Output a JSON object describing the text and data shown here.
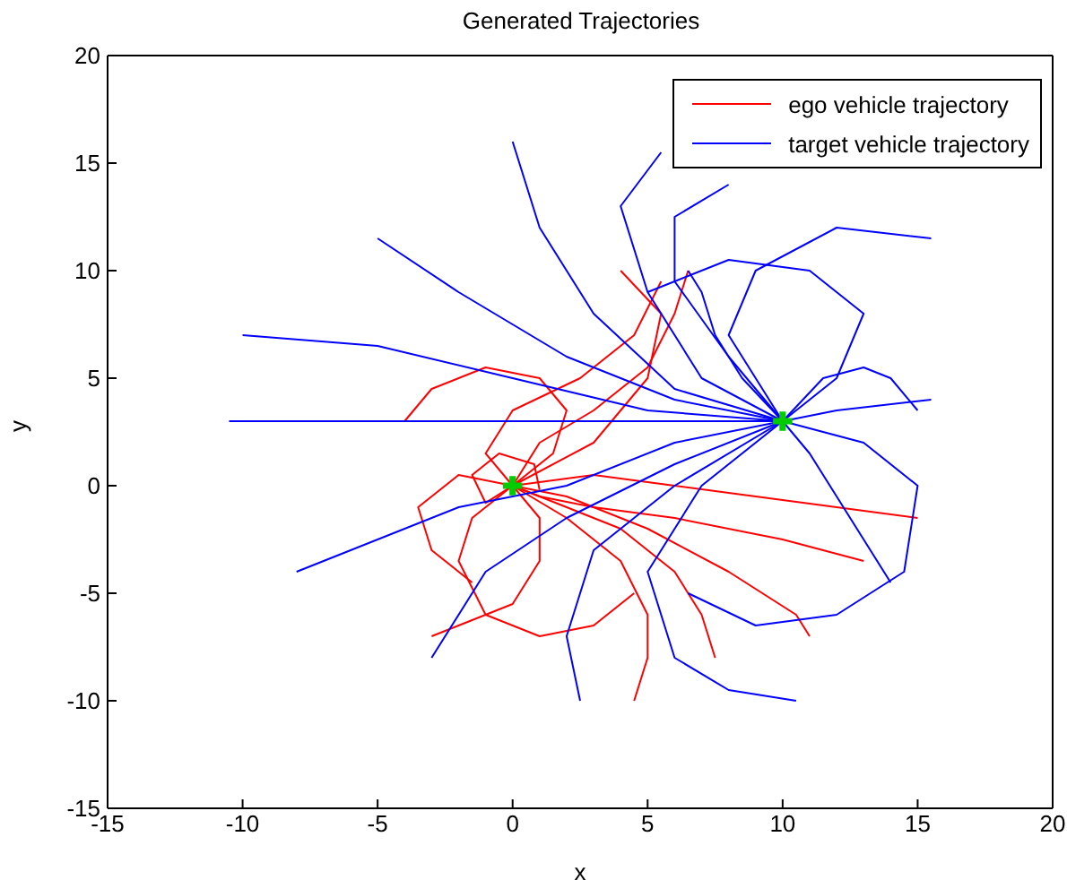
{
  "chart_data": {
    "type": "line",
    "title": "Generated Trajectories",
    "xlabel": "x",
    "ylabel": "y",
    "xlim": [
      -15,
      20
    ],
    "xticks": [
      -15,
      -10,
      -5,
      0,
      5,
      10,
      15,
      20
    ],
    "ylim": [
      -15,
      20
    ],
    "yticks": [
      -15,
      -10,
      -5,
      0,
      5,
      10,
      15,
      20
    ],
    "legend": "top right",
    "series": [
      {
        "name": "ego vehicle trajectory",
        "color": "#ff0000",
        "x": [
          0,
          1.5,
          2,
          1,
          -1,
          -3,
          -4
        ],
        "values": [
          0,
          1.5,
          3.5,
          5,
          5.5,
          4.5,
          3
        ]
      },
      {
        "color": "#ff0000",
        "x": [
          0,
          -1.5,
          -2,
          -1,
          1,
          3,
          4.5
        ],
        "values": [
          0,
          -1.5,
          -3.5,
          -6,
          -7,
          -6.5,
          -5
        ]
      },
      {
        "color": "#ff0000",
        "x": [
          0,
          2,
          4,
          6,
          7,
          7.5
        ],
        "values": [
          0,
          -1,
          -2,
          -4,
          -6,
          -8
        ]
      },
      {
        "color": "#ff0000",
        "x": [
          0,
          2,
          5,
          8,
          10.5,
          11
        ],
        "values": [
          0,
          -0.5,
          -2,
          -4,
          -6,
          -7
        ]
      },
      {
        "color": "#ff0000",
        "x": [
          0,
          3,
          6,
          9,
          12,
          15
        ],
        "values": [
          0,
          0.5,
          0,
          -0.5,
          -1,
          -1.5
        ]
      },
      {
        "color": "#ff0000",
        "x": [
          0,
          -1,
          0,
          2.5,
          4.5,
          5.5
        ],
        "values": [
          0,
          1.5,
          3.5,
          5,
          7,
          9.5
        ]
      },
      {
        "color": "#ff0000",
        "x": [
          0,
          1,
          3,
          5,
          6,
          6.5
        ],
        "values": [
          0,
          2,
          3.5,
          5.5,
          8,
          10
        ]
      },
      {
        "color": "#ff0000",
        "x": [
          0,
          -2,
          -3.5,
          -3,
          -1.5
        ],
        "values": [
          0,
          0.5,
          -1,
          -3,
          -4.5
        ]
      },
      {
        "color": "#ff0000",
        "x": [
          0,
          1,
          1,
          0,
          -2,
          -3
        ],
        "values": [
          0,
          -1.5,
          -3.5,
          -5.5,
          -6.5,
          -7
        ]
      },
      {
        "color": "#ff0000",
        "x": [
          0,
          2,
          4,
          5,
          5,
          4.5
        ],
        "values": [
          0,
          -1.5,
          -3.5,
          -6,
          -8,
          -10
        ]
      },
      {
        "color": "#ff0000",
        "x": [
          0,
          1,
          3,
          6,
          10,
          13
        ],
        "values": [
          0,
          -0.5,
          -1,
          -1.5,
          -2.5,
          -3.5
        ]
      },
      {
        "color": "#ff0000",
        "x": [
          0,
          -1,
          -1.5,
          -0.5,
          0.8,
          1
        ],
        "values": [
          0,
          -0.8,
          0.5,
          1.5,
          1,
          -0.2
        ]
      },
      {
        "color": "#ff0000",
        "x": [
          0,
          3,
          5,
          5.5,
          4
        ],
        "values": [
          0,
          2,
          5,
          8,
          10
        ]
      },
      {
        "name": "target vehicle trajectory",
        "color": "#0000ff",
        "x": [
          10,
          6,
          2,
          -3,
          -10.5
        ],
        "values": [
          3,
          3,
          3,
          3,
          3
        ]
      },
      {
        "color": "#0000ff",
        "x": [
          10,
          5,
          0,
          -5,
          -10
        ],
        "values": [
          3,
          3.5,
          5,
          6.5,
          7
        ]
      },
      {
        "color": "#0000ff",
        "x": [
          10,
          6,
          2,
          -2,
          -5
        ],
        "values": [
          3,
          4,
          6,
          9,
          11.5
        ]
      },
      {
        "color": "#0000ff",
        "x": [
          10,
          6,
          3,
          1,
          0
        ],
        "values": [
          3,
          4.5,
          8,
          12,
          16
        ]
      },
      {
        "color": "#0000ff",
        "x": [
          10,
          7,
          5,
          4,
          5.5
        ],
        "values": [
          3,
          5,
          9,
          13,
          15.5
        ]
      },
      {
        "color": "#0000ff",
        "x": [
          10,
          8,
          6,
          6,
          8
        ],
        "values": [
          3,
          6,
          9.5,
          12.5,
          14
        ]
      },
      {
        "color": "#0000ff",
        "x": [
          10,
          8,
          9,
          12,
          15.5
        ],
        "values": [
          3,
          7,
          10,
          12,
          11.5
        ]
      },
      {
        "color": "#0000ff",
        "x": [
          10,
          12,
          13,
          11,
          8,
          5
        ],
        "values": [
          3,
          5,
          8,
          10,
          10.5,
          9
        ]
      },
      {
        "color": "#0000ff",
        "x": [
          10,
          6,
          2,
          -2,
          -8
        ],
        "values": [
          3,
          2,
          0,
          -1,
          -4
        ]
      },
      {
        "color": "#0000ff",
        "x": [
          10,
          6,
          2,
          -1,
          -3
        ],
        "values": [
          3,
          1,
          -1.5,
          -4,
          -8
        ]
      },
      {
        "color": "#0000ff",
        "x": [
          10,
          6,
          3,
          2,
          2.5
        ],
        "values": [
          3,
          0,
          -3,
          -7,
          -10
        ]
      },
      {
        "color": "#0000ff",
        "x": [
          10,
          7,
          5,
          6,
          8,
          10.5
        ],
        "values": [
          3,
          0,
          -4,
          -8,
          -9.5,
          -10
        ]
      },
      {
        "color": "#0000ff",
        "x": [
          10,
          13,
          15,
          14.5,
          12,
          9,
          6.5
        ],
        "values": [
          3,
          2,
          0,
          -4,
          -6,
          -6.5,
          -5
        ]
      },
      {
        "color": "#0000ff",
        "x": [
          10,
          12,
          15.5
        ],
        "values": [
          3,
          3.5,
          4
        ]
      },
      {
        "color": "#0000ff",
        "x": [
          10,
          11,
          12,
          13,
          14
        ],
        "values": [
          3,
          1.5,
          -0.5,
          -2.5,
          -4.5
        ]
      },
      {
        "color": "#0000ff",
        "x": [
          10,
          11.5,
          13,
          14,
          15
        ],
        "values": [
          3,
          5,
          5.5,
          5,
          3.5
        ]
      },
      {
        "color": "#0000ff",
        "x": [
          10,
          8.5,
          7.5,
          7,
          6.5
        ],
        "values": [
          3,
          5,
          7,
          9,
          10
        ]
      },
      {
        "type": "scatter",
        "color": "#00cc00",
        "marker": "cross",
        "x": [
          0,
          10
        ],
        "values": [
          0,
          3
        ]
      }
    ]
  }
}
